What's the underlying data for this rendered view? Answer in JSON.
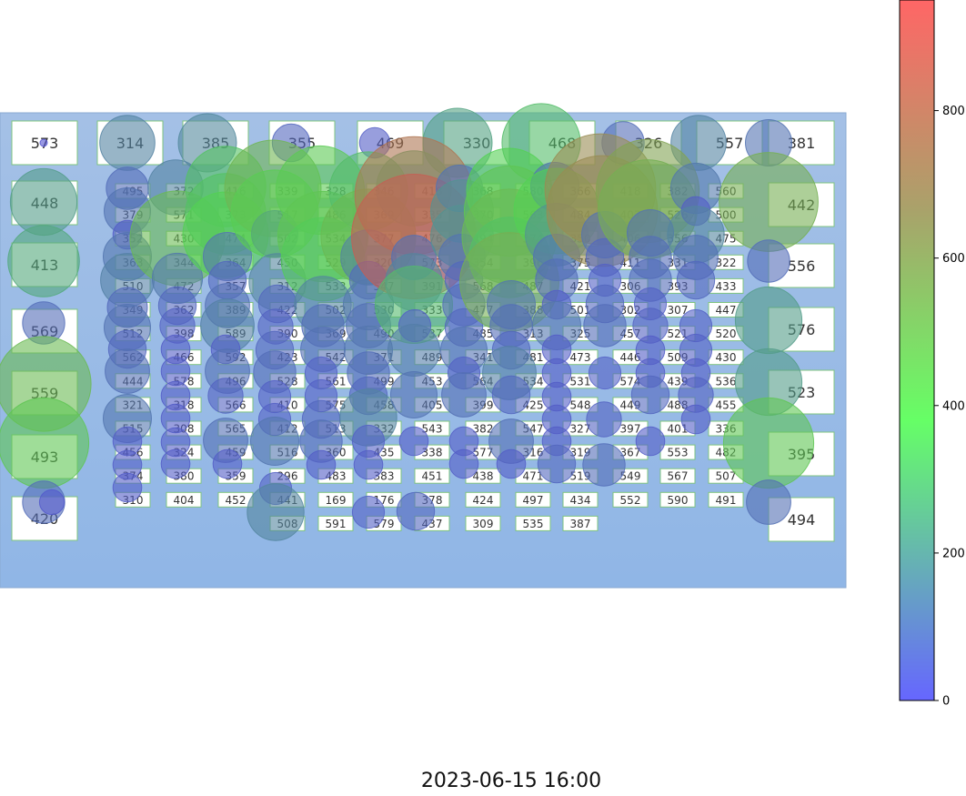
{
  "timestamp": "2023-06-15 16:00",
  "colors": {
    "background": "#9bbce6",
    "box_fill": "#ffffff",
    "box_stroke": "#7fc47f",
    "cmap_low": "#6666ff",
    "cmap_mid": "#66ff66",
    "cmap_high": "#ff6666"
  },
  "chart_data": {
    "type": "bubble",
    "colorbar": {
      "min": 0,
      "max": 950,
      "ticks": [
        0,
        200,
        400,
        600,
        800
      ]
    },
    "big_rooms": [
      "573",
      "448",
      "413",
      "569",
      "559",
      "493",
      "420",
      "314",
      "385",
      "355",
      "469",
      "330",
      "468",
      "326",
      "557",
      "381",
      "442",
      "556",
      "576",
      "523",
      "395",
      "494"
    ],
    "small_rooms": [
      [
        "495",
        "379",
        "352",
        "363",
        "510",
        "349",
        "512",
        "562",
        "444",
        "321",
        "515",
        "456",
        "374",
        "310"
      ],
      [
        "372",
        "571",
        "430",
        "344",
        "472",
        "362",
        "398",
        "466",
        "578",
        "318",
        "308",
        "324",
        "380",
        "404"
      ],
      [
        "416",
        "373",
        "474",
        "364",
        "357",
        "389",
        "589",
        "592",
        "496",
        "566",
        "565",
        "459",
        "359",
        "452"
      ],
      [
        "339",
        "517",
        "502",
        "450",
        "312",
        "422",
        "390",
        "423",
        "528",
        "410",
        "412",
        "516",
        "296",
        "441",
        "508"
      ],
      [
        "328",
        "486",
        "534",
        "529",
        "533",
        "502",
        "369",
        "542",
        "561",
        "575",
        "513",
        "360",
        "483",
        "169",
        "591"
      ],
      [
        "346",
        "369",
        "377",
        "320",
        "547",
        "530",
        "490",
        "371",
        "499",
        "458",
        "332",
        "435",
        "383",
        "176",
        "579"
      ],
      [
        "418",
        "335",
        "476",
        "573",
        "391",
        "333",
        "537",
        "489",
        "453",
        "405",
        "543",
        "338",
        "451",
        "378",
        "437"
      ],
      [
        "368",
        "370",
        "494",
        "354",
        "568",
        "477",
        "485",
        "341",
        "564",
        "399",
        "382",
        "577",
        "438",
        "424",
        "309"
      ],
      [
        "580",
        "563",
        "574",
        "396",
        "487",
        "388",
        "313",
        "481",
        "534",
        "425",
        "547",
        "316",
        "471",
        "497",
        "535"
      ],
      [
        "366",
        "484",
        "350",
        "375",
        "421",
        "501",
        "325",
        "473",
        "531",
        "548",
        "327",
        "319",
        "519",
        "434",
        "387"
      ],
      [
        "418",
        "407",
        "406",
        "411",
        "306",
        "302",
        "457",
        "446",
        "574",
        "449",
        "397",
        "367",
        "549",
        "552"
      ],
      [
        "382",
        "526",
        "356",
        "331",
        "393",
        "307",
        "521",
        "509",
        "439",
        "488",
        "401",
        "553",
        "567",
        "590"
      ],
      [
        "560",
        "500",
        "475",
        "322",
        "433",
        "447",
        "520",
        "430",
        "536",
        "455",
        "336",
        "482",
        "507",
        "491"
      ]
    ],
    "bubbles": [
      [
        48,
        157,
        0
      ],
      [
        140,
        157,
        150
      ],
      [
        228,
        157,
        170
      ],
      [
        320,
        157,
        60
      ],
      [
        412,
        157,
        35
      ],
      [
        503,
        157,
        250
      ],
      [
        595,
        157,
        330
      ],
      [
        685,
        157,
        80
      ],
      [
        768,
        157,
        150
      ],
      [
        845,
        157,
        100
      ],
      [
        48,
        222,
        230
      ],
      [
        48,
        287,
        270
      ],
      [
        48,
        355,
        80
      ],
      [
        48,
        422,
        500
      ],
      [
        48,
        487,
        450
      ],
      [
        48,
        552,
        80
      ],
      [
        57,
        552,
        20
      ],
      [
        140,
        207,
        80
      ],
      [
        140,
        232,
        100
      ],
      [
        140,
        258,
        30
      ],
      [
        140,
        282,
        110
      ],
      [
        140,
        308,
        140
      ],
      [
        140,
        338,
        70
      ],
      [
        140,
        360,
        100
      ],
      [
        140,
        384,
        60
      ],
      [
        140,
        408,
        90
      ],
      [
        140,
        460,
        110
      ],
      [
        140,
        485,
        30
      ],
      [
        140,
        511,
        30
      ],
      [
        140,
        536,
        30
      ],
      [
        193,
        206,
        150
      ],
      [
        195,
        262,
        500
      ],
      [
        195,
        306,
        120
      ],
      [
        195,
        336,
        60
      ],
      [
        195,
        358,
        50
      ],
      [
        193,
        384,
        30
      ],
      [
        193,
        408,
        30
      ],
      [
        193,
        435,
        30
      ],
      [
        193,
        460,
        30
      ],
      [
        193,
        486,
        30
      ],
      [
        193,
        510,
        30
      ],
      [
        248,
        205,
        350
      ],
      [
        248,
        235,
        350
      ],
      [
        248,
        258,
        400
      ],
      [
        250,
        282,
        110
      ],
      [
        250,
        308,
        60
      ],
      [
        250,
        336,
        90
      ],
      [
        250,
        358,
        140
      ],
      [
        248,
        384,
        30
      ],
      [
        250,
        408,
        90
      ],
      [
        248,
        435,
        50
      ],
      [
        248,
        484,
        90
      ],
      [
        250,
        510,
        30
      ],
      [
        300,
        207,
        520
      ],
      [
        302,
        257,
        100
      ],
      [
        302,
        235,
        420
      ],
      [
        305,
        310,
        160
      ],
      [
        305,
        334,
        60
      ],
      [
        303,
        359,
        50
      ],
      [
        302,
        385,
        60
      ],
      [
        302,
        409,
        80
      ],
      [
        302,
        436,
        40
      ],
      [
        302,
        461,
        40
      ],
      [
        302,
        485,
        110
      ],
      [
        303,
        537,
        40
      ],
      [
        303,
        563,
        160
      ],
      [
        352,
        209,
        430
      ],
      [
        355,
        260,
        450
      ],
      [
        355,
        285,
        380
      ],
      [
        355,
        335,
        160
      ],
      [
        355,
        358,
        80
      ],
      [
        355,
        384,
        90
      ],
      [
        353,
        410,
        40
      ],
      [
        353,
        435,
        40
      ],
      [
        353,
        461,
        60
      ],
      [
        353,
        485,
        80
      ],
      [
        353,
        511,
        30
      ],
      [
        405,
        210,
        330
      ],
      [
        405,
        260,
        500
      ],
      [
        405,
        283,
        150
      ],
      [
        405,
        308,
        60
      ],
      [
        405,
        335,
        120
      ],
      [
        405,
        358,
        90
      ],
      [
        405,
        385,
        110
      ],
      [
        405,
        410,
        80
      ],
      [
        405,
        435,
        60
      ],
      [
        405,
        459,
        160
      ],
      [
        405,
        485,
        40
      ],
      [
        405,
        511,
        30
      ],
      [
        405,
        563,
        40
      ],
      [
        455,
        207,
        300
      ],
      [
        455,
        215,
        800
      ],
      [
        455,
        260,
        900
      ],
      [
        455,
        283,
        90
      ],
      [
        455,
        310,
        160
      ],
      [
        455,
        335,
        320
      ],
      [
        456,
        358,
        40
      ],
      [
        455,
        385,
        130
      ],
      [
        455,
        434,
        100
      ],
      [
        455,
        485,
        30
      ],
      [
        457,
        562,
        60
      ],
      [
        505,
        207,
        100
      ],
      [
        508,
        232,
        200
      ],
      [
        508,
        260,
        200
      ],
      [
        508,
        283,
        100
      ],
      [
        510,
        308,
        60
      ],
      [
        510,
        335,
        80
      ],
      [
        510,
        360,
        60
      ],
      [
        510,
        385,
        100
      ],
      [
        510,
        410,
        40
      ],
      [
        510,
        434,
        90
      ],
      [
        510,
        485,
        30
      ],
      [
        510,
        510,
        30
      ],
      [
        560,
        210,
        400
      ],
      [
        560,
        232,
        450
      ],
      [
        560,
        260,
        500
      ],
      [
        560,
        283,
        350
      ],
      [
        560,
        310,
        550
      ],
      [
        562,
        335,
        110
      ],
      [
        562,
        358,
        80
      ],
      [
        562,
        385,
        60
      ],
      [
        560,
        410,
        140
      ],
      [
        562,
        434,
        60
      ],
      [
        562,
        485,
        90
      ],
      [
        562,
        510,
        30
      ],
      [
        610,
        205,
        110
      ],
      [
        612,
        232,
        400
      ],
      [
        612,
        258,
        200
      ],
      [
        612,
        283,
        100
      ],
      [
        612,
        308,
        80
      ],
      [
        612,
        335,
        30
      ],
      [
        612,
        358,
        110
      ],
      [
        612,
        384,
        30
      ],
      [
        612,
        410,
        30
      ],
      [
        612,
        436,
        30
      ],
      [
        612,
        461,
        30
      ],
      [
        612,
        485,
        30
      ],
      [
        612,
        510,
        60
      ],
      [
        660,
        208,
        700
      ],
      [
        662,
        232,
        700
      ],
      [
        665,
        258,
        100
      ],
      [
        665,
        283,
        60
      ],
      [
        665,
        308,
        40
      ],
      [
        665,
        334,
        60
      ],
      [
        665,
        358,
        80
      ],
      [
        665,
        410,
        40
      ],
      [
        664,
        461,
        50
      ],
      [
        664,
        511,
        80
      ],
      [
        712,
        210,
        600
      ],
      [
        712,
        230,
        550
      ],
      [
        715,
        256,
        100
      ],
      [
        715,
        283,
        80
      ],
      [
        715,
        308,
        80
      ],
      [
        715,
        334,
        40
      ],
      [
        715,
        358,
        50
      ],
      [
        715,
        385,
        30
      ],
      [
        715,
        410,
        30
      ],
      [
        715,
        434,
        60
      ],
      [
        715,
        485,
        30
      ],
      [
        765,
        207,
        120
      ],
      [
        765,
        232,
        30
      ],
      [
        765,
        258,
        160
      ],
      [
        765,
        283,
        90
      ],
      [
        765,
        308,
        60
      ],
      [
        765,
        358,
        40
      ],
      [
        765,
        385,
        40
      ],
      [
        765,
        410,
        30
      ],
      [
        765,
        434,
        50
      ],
      [
        765,
        461,
        30
      ],
      [
        845,
        222,
        550
      ],
      [
        845,
        287,
        80
      ],
      [
        845,
        352,
        230
      ],
      [
        845,
        420,
        230
      ],
      [
        845,
        487,
        450
      ],
      [
        845,
        552,
        90
      ]
    ]
  }
}
